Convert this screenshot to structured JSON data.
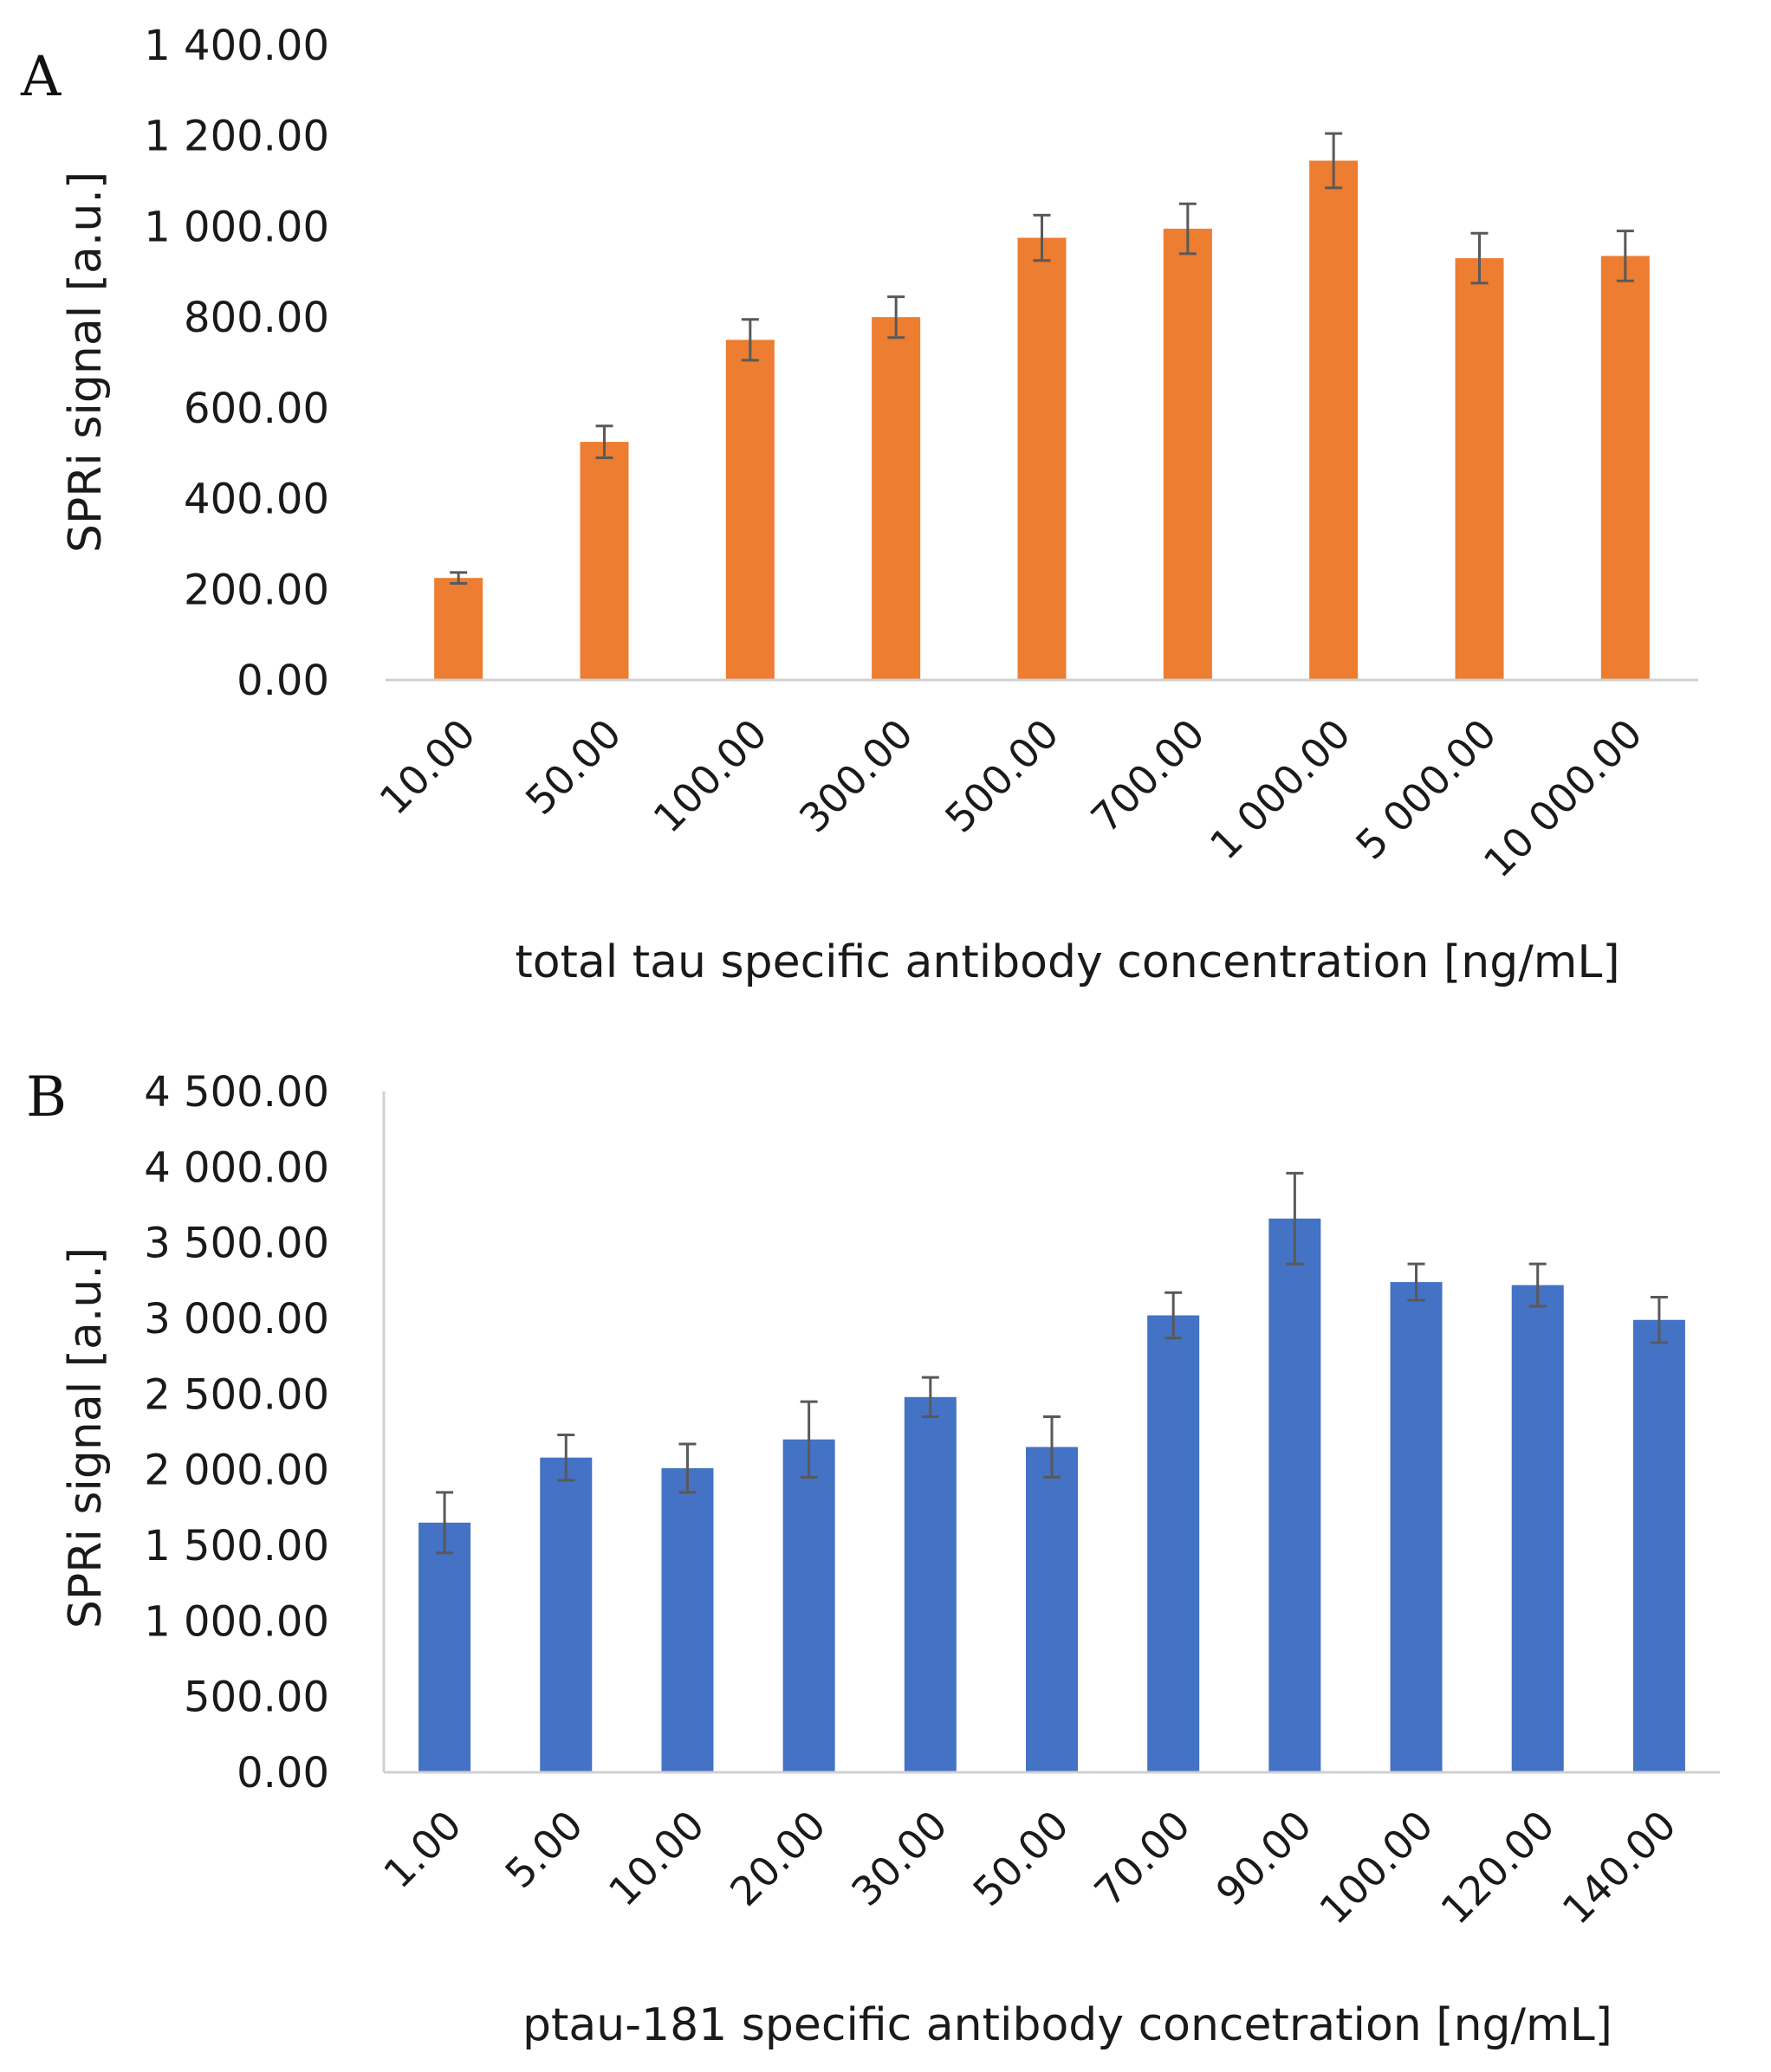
{
  "figure": {
    "panel_a_label": "A",
    "panel_b_label": "B"
  },
  "chart_data": [
    {
      "type": "bar",
      "panel": "A",
      "title": "",
      "color": "#ED7D31",
      "errorbar_color": "#595959",
      "ylabel": "SPRi signal [a.u.]",
      "xlabel": "total tau specific antibody concentration [ng/mL]",
      "categories": [
        "10.00",
        "50.00",
        "100.00",
        "300.00",
        "500.00",
        "700.00",
        "1 000.00",
        "5 000.00",
        "10 000.00"
      ],
      "values": [
        225,
        525,
        750,
        800,
        975,
        995,
        1145,
        930,
        935
      ],
      "errors": [
        12,
        35,
        45,
        45,
        50,
        55,
        60,
        55,
        55
      ],
      "ylim": [
        0,
        1400
      ],
      "yticks": [
        0,
        200,
        400,
        600,
        800,
        1000,
        1200,
        1400
      ],
      "ytick_labels": [
        "0.00",
        "200.00",
        "400.00",
        "600.00",
        "800.00",
        "1 000.00",
        "1 200.00",
        "1 400.00"
      ],
      "grid": false,
      "legend": "none"
    },
    {
      "type": "bar",
      "panel": "B",
      "title": "",
      "color": "#4472C4",
      "errorbar_color": "#595959",
      "ylabel": "SPRi signal [a.u.]",
      "xlabel": "ptau-181 specific antibody concetration [ng/mL]",
      "categories": [
        "1.00",
        "5.00",
        "10.00",
        "20.00",
        "30.00",
        "50.00",
        "70.00",
        "90.00",
        "100.00",
        "120.00",
        "140.00"
      ],
      "values": [
        1650,
        2080,
        2010,
        2200,
        2480,
        2150,
        3020,
        3660,
        3240,
        3220,
        2990
      ],
      "errors": [
        200,
        150,
        160,
        250,
        130,
        200,
        150,
        300,
        120,
        140,
        150
      ],
      "ylim": [
        0,
        4500
      ],
      "yticks": [
        0,
        500,
        1000,
        1500,
        2000,
        2500,
        3000,
        3500,
        4000,
        4500
      ],
      "ytick_labels": [
        "0.00",
        "500.00",
        "1 000.00",
        "1 500.00",
        "2 000.00",
        "2 500.00",
        "3 000.00",
        "3 500.00",
        "4 000.00",
        "4 500.00"
      ],
      "grid": false,
      "legend": "none"
    }
  ]
}
